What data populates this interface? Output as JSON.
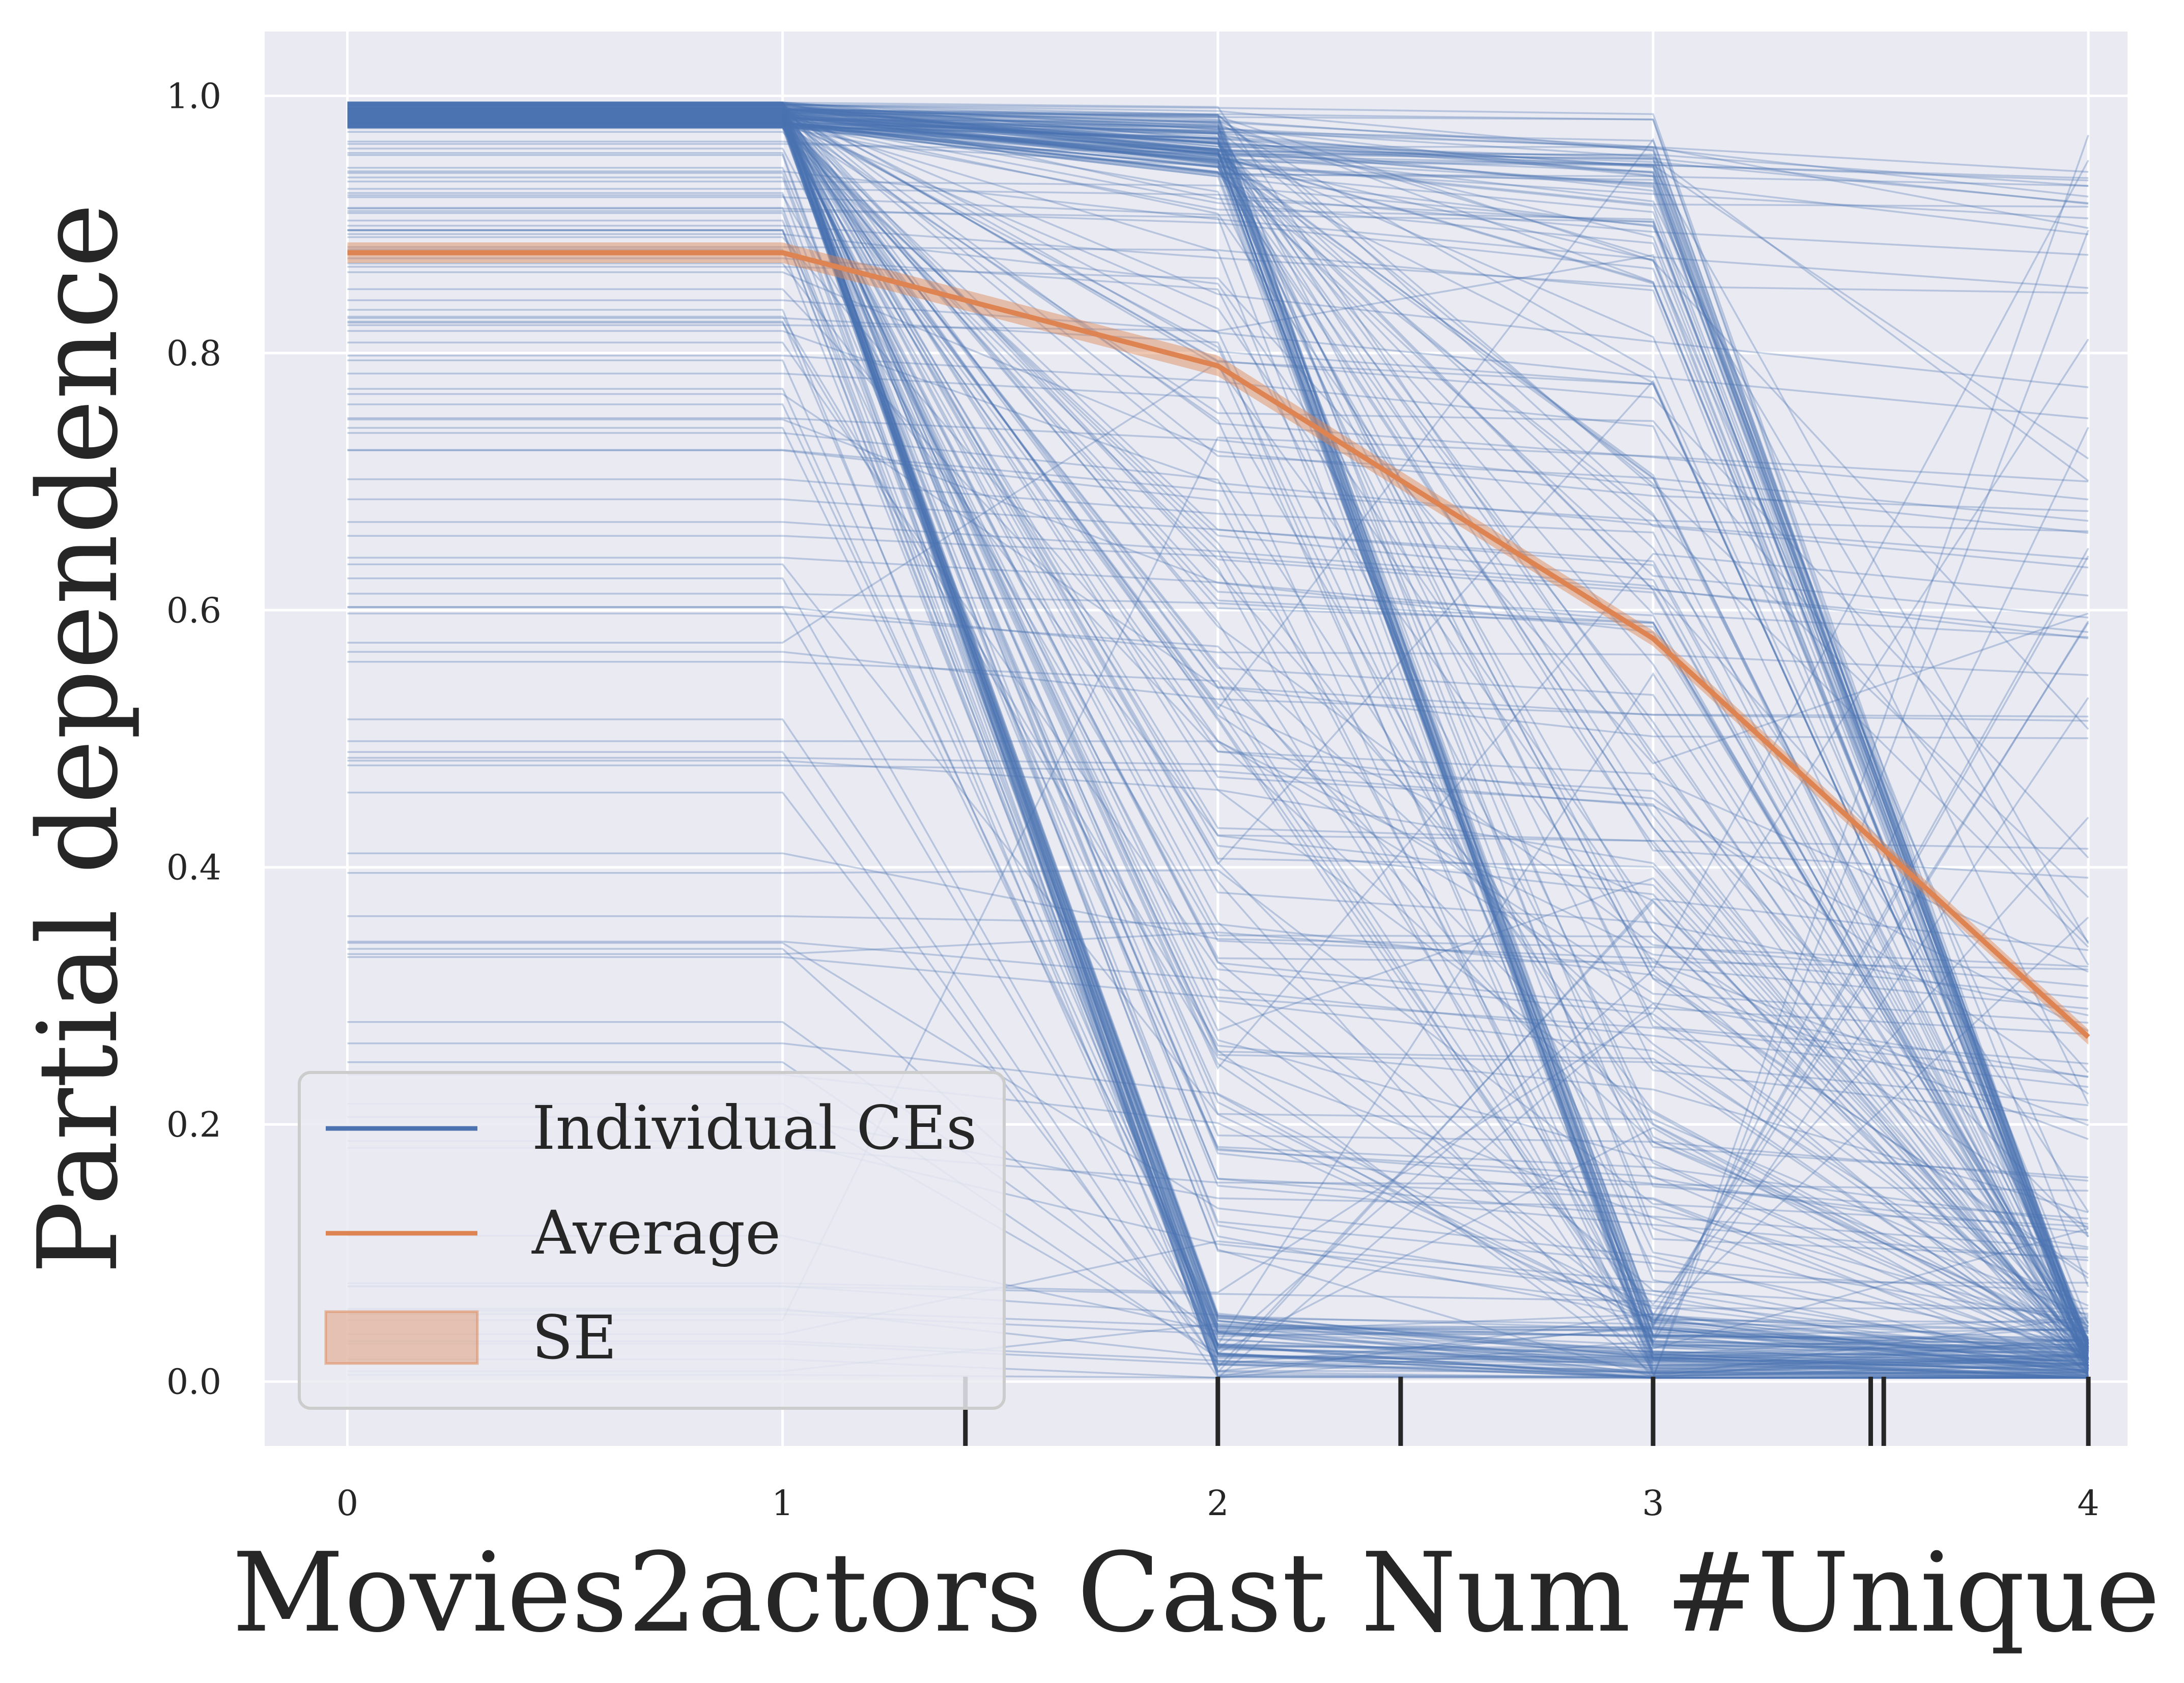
{
  "chart_data": {
    "type": "line",
    "title": "",
    "xlabel": "Movies2actors Cast Num #Unique",
    "ylabel": "Partial dependence",
    "xlim": [
      -0.19,
      4.09
    ],
    "ylim": [
      -0.05,
      1.05
    ],
    "xticks": [
      "0",
      "1",
      "2",
      "3",
      "4"
    ],
    "yticks": [
      "0.0",
      "0.2",
      "0.4",
      "0.6",
      "0.8",
      "1.0"
    ],
    "x": [
      0,
      1,
      2,
      3,
      4
    ],
    "grid": true,
    "legend_position": "lower-left",
    "series": [
      {
        "name": "Individual CEs",
        "color": "#4c72b0",
        "kind": "ice-lines"
      },
      {
        "name": "Average",
        "color": "#dd8452",
        "values": [
          0.878,
          0.878,
          0.79,
          0.578,
          0.268
        ]
      },
      {
        "name": "SE",
        "color": "#dd8452",
        "kind": "band",
        "lower": [
          0.87,
          0.87,
          0.782,
          0.572,
          0.262
        ],
        "upper": [
          0.886,
          0.886,
          0.798,
          0.584,
          0.274
        ]
      }
    ],
    "rug_x": [
      1.42,
      2.0,
      2.42,
      3.0,
      3.5,
      3.53,
      4.0
    ],
    "colors": {
      "background": "#eaeaf2",
      "grid": "#ffffff",
      "ice": "#4c72b0",
      "average": "#dd8452",
      "rug": "#262626"
    }
  }
}
